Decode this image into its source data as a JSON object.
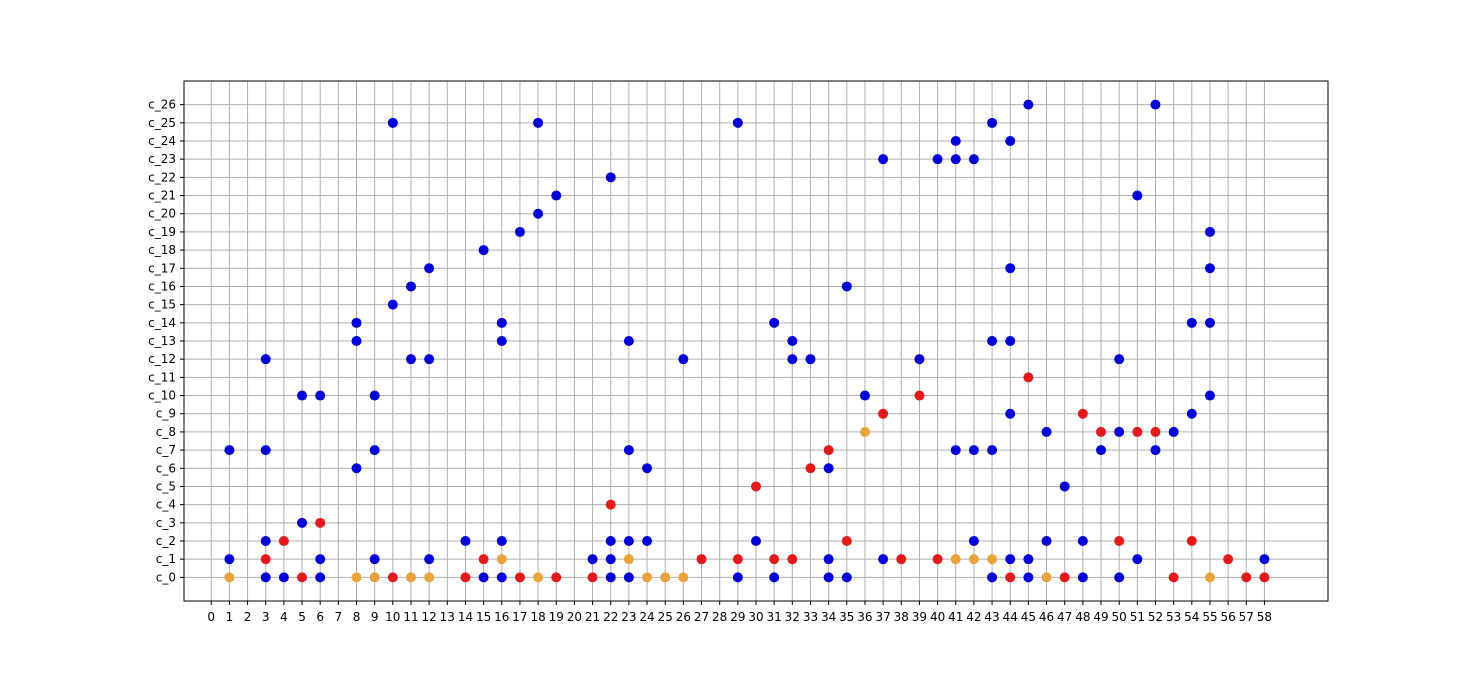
{
  "chart_data": {
    "type": "scatter",
    "x_ticks": [
      0,
      1,
      2,
      3,
      4,
      5,
      6,
      7,
      8,
      9,
      10,
      11,
      12,
      13,
      14,
      15,
      16,
      17,
      18,
      19,
      20,
      21,
      22,
      23,
      24,
      25,
      26,
      27,
      28,
      29,
      30,
      31,
      32,
      33,
      34,
      35,
      36,
      37,
      38,
      39,
      40,
      41,
      42,
      43,
      44,
      45,
      46,
      47,
      48,
      49,
      50,
      51,
      52,
      53,
      54,
      55,
      56,
      57,
      58
    ],
    "y_categories": [
      "c_0",
      "c_1",
      "c_2",
      "c_3",
      "c_4",
      "c_5",
      "c_6",
      "c_7",
      "c_8",
      "c_9",
      "c_10",
      "c_11",
      "c_12",
      "c_13",
      "c_14",
      "c_15",
      "c_16",
      "c_17",
      "c_18",
      "c_19",
      "c_20",
      "c_21",
      "c_22",
      "c_23",
      "c_24",
      "c_25",
      "c_26"
    ],
    "xlim": [
      -1.5,
      61.5
    ],
    "ylim": [
      -1.3,
      27.3
    ],
    "grid": true,
    "colors": {
      "blue": "#0000d6",
      "red": "#e31a1c",
      "orange": "#e8a33a",
      "grid": "#b0b0b0"
    },
    "series": [
      {
        "color_key": "blue",
        "points": [
          [
            1,
            7
          ],
          [
            1,
            1
          ],
          [
            3,
            12
          ],
          [
            3,
            7
          ],
          [
            3,
            2
          ],
          [
            3,
            0
          ],
          [
            4,
            0
          ],
          [
            5,
            10
          ],
          [
            5,
            3
          ],
          [
            6,
            10
          ],
          [
            6,
            1
          ],
          [
            6,
            0
          ],
          [
            8,
            14
          ],
          [
            8,
            13
          ],
          [
            8,
            6
          ],
          [
            9,
            10
          ],
          [
            9,
            7
          ],
          [
            9,
            1
          ],
          [
            10,
            25
          ],
          [
            10,
            15
          ],
          [
            11,
            16
          ],
          [
            11,
            12
          ],
          [
            12,
            17
          ],
          [
            12,
            12
          ],
          [
            12,
            1
          ],
          [
            14,
            2
          ],
          [
            15,
            18
          ],
          [
            15,
            0
          ],
          [
            16,
            14
          ],
          [
            16,
            13
          ],
          [
            16,
            2
          ],
          [
            16,
            0
          ],
          [
            17,
            19
          ],
          [
            18,
            25
          ],
          [
            18,
            20
          ],
          [
            19,
            21
          ],
          [
            21,
            1
          ],
          [
            22,
            22
          ],
          [
            22,
            2
          ],
          [
            22,
            1
          ],
          [
            22,
            0
          ],
          [
            23,
            13
          ],
          [
            23,
            7
          ],
          [
            23,
            2
          ],
          [
            23,
            0
          ],
          [
            24,
            6
          ],
          [
            24,
            2
          ],
          [
            26,
            12
          ],
          [
            29,
            25
          ],
          [
            29,
            0
          ],
          [
            30,
            2
          ],
          [
            31,
            14
          ],
          [
            31,
            0
          ],
          [
            32,
            13
          ],
          [
            32,
            12
          ],
          [
            33,
            12
          ],
          [
            34,
            6
          ],
          [
            34,
            1
          ],
          [
            34,
            0
          ],
          [
            35,
            16
          ],
          [
            35,
            0
          ],
          [
            36,
            10
          ],
          [
            37,
            23
          ],
          [
            37,
            1
          ],
          [
            39,
            12
          ],
          [
            40,
            23
          ],
          [
            41,
            24
          ],
          [
            41,
            23
          ],
          [
            41,
            7
          ],
          [
            42,
            23
          ],
          [
            42,
            7
          ],
          [
            42,
            2
          ],
          [
            43,
            25
          ],
          [
            43,
            13
          ],
          [
            43,
            7
          ],
          [
            43,
            0
          ],
          [
            44,
            24
          ],
          [
            44,
            17
          ],
          [
            44,
            13
          ],
          [
            44,
            9
          ],
          [
            44,
            1
          ],
          [
            45,
            26
          ],
          [
            45,
            1
          ],
          [
            45,
            0
          ],
          [
            46,
            8
          ],
          [
            46,
            2
          ],
          [
            47,
            5
          ],
          [
            48,
            2
          ],
          [
            48,
            0
          ],
          [
            49,
            7
          ],
          [
            50,
            12
          ],
          [
            50,
            8
          ],
          [
            50,
            0
          ],
          [
            51,
            21
          ],
          [
            51,
            1
          ],
          [
            52,
            26
          ],
          [
            52,
            7
          ],
          [
            53,
            8
          ],
          [
            54,
            14
          ],
          [
            54,
            9
          ],
          [
            55,
            19
          ],
          [
            55,
            17
          ],
          [
            55,
            14
          ],
          [
            55,
            10
          ],
          [
            58,
            1
          ]
        ]
      },
      {
        "color_key": "red",
        "points": [
          [
            3,
            1
          ],
          [
            4,
            2
          ],
          [
            5,
            0
          ],
          [
            6,
            3
          ],
          [
            10,
            0
          ],
          [
            14,
            0
          ],
          [
            15,
            1
          ],
          [
            17,
            0
          ],
          [
            19,
            0
          ],
          [
            21,
            0
          ],
          [
            22,
            4
          ],
          [
            27,
            1
          ],
          [
            29,
            1
          ],
          [
            30,
            5
          ],
          [
            31,
            1
          ],
          [
            32,
            1
          ],
          [
            33,
            6
          ],
          [
            34,
            7
          ],
          [
            35,
            2
          ],
          [
            37,
            9
          ],
          [
            38,
            1
          ],
          [
            39,
            10
          ],
          [
            40,
            1
          ],
          [
            44,
            0
          ],
          [
            45,
            11
          ],
          [
            47,
            0
          ],
          [
            48,
            9
          ],
          [
            49,
            8
          ],
          [
            50,
            2
          ],
          [
            51,
            8
          ],
          [
            52,
            8
          ],
          [
            53,
            0
          ],
          [
            54,
            2
          ],
          [
            56,
            1
          ],
          [
            57,
            0
          ],
          [
            58,
            0
          ]
        ]
      },
      {
        "color_key": "orange",
        "points": [
          [
            1,
            0
          ],
          [
            8,
            0
          ],
          [
            9,
            0
          ],
          [
            11,
            0
          ],
          [
            12,
            0
          ],
          [
            16,
            1
          ],
          [
            18,
            0
          ],
          [
            23,
            1
          ],
          [
            24,
            0
          ],
          [
            25,
            0
          ],
          [
            26,
            0
          ],
          [
            36,
            8
          ],
          [
            41,
            1
          ],
          [
            42,
            1
          ],
          [
            43,
            1
          ],
          [
            46,
            0
          ],
          [
            55,
            0
          ]
        ]
      }
    ]
  }
}
